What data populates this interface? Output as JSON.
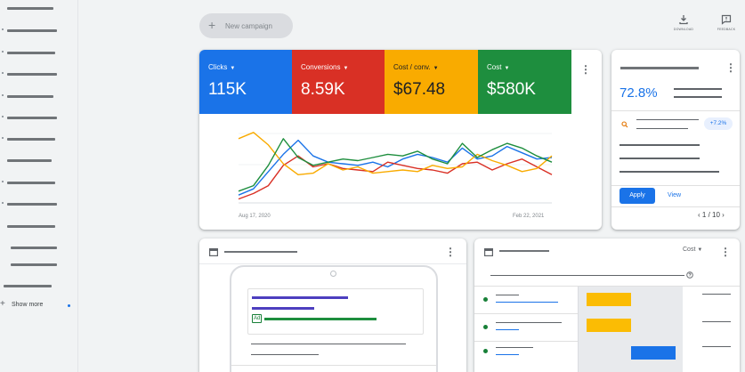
{
  "sidebar": {
    "show_more_label": "Show more"
  },
  "toolbar": {
    "new_campaign_label": "New campaign",
    "download_label": "DOWNLOAD",
    "feedback_label": "FEEDBACK"
  },
  "colors": {
    "clicks": "#1a73e8",
    "conversions": "#d93025",
    "cost_per_conv": "#f9ab00",
    "cost": "#1e8e3e"
  },
  "metrics": [
    {
      "label": "Clicks",
      "value": "115K",
      "color": "#1a73e8"
    },
    {
      "label": "Conversions",
      "value": "8.59K",
      "color": "#d93025"
    },
    {
      "label": "Cost / conv.",
      "value": "$67.48",
      "color": "#f9ab00"
    },
    {
      "label": "Cost",
      "value": "$580K",
      "color": "#1e8e3e"
    }
  ],
  "chart_data": {
    "type": "line",
    "title": "",
    "x_start_label": "Aug 17, 2020",
    "x_end_label": "Feb 22, 2021",
    "ylim": [
      0,
      100
    ],
    "series": [
      {
        "name": "Clicks",
        "color": "#1a73e8",
        "values": [
          10,
          18,
          40,
          62,
          80,
          60,
          52,
          50,
          48,
          52,
          46,
          56,
          62,
          58,
          52,
          70,
          56,
          60,
          72,
          64,
          56,
          58
        ]
      },
      {
        "name": "Conversions",
        "color": "#d93025",
        "values": [
          5,
          12,
          22,
          48,
          60,
          46,
          50,
          44,
          42,
          40,
          52,
          48,
          44,
          42,
          38,
          50,
          52,
          42,
          50,
          56,
          46,
          36
        ]
      },
      {
        "name": "Cost / conv.",
        "color": "#f9ab00",
        "values": [
          82,
          90,
          74,
          50,
          36,
          38,
          50,
          42,
          46,
          38,
          40,
          42,
          40,
          48,
          44,
          46,
          62,
          54,
          48,
          40,
          44,
          60
        ]
      },
      {
        "name": "Cost",
        "color": "#1e8e3e",
        "values": [
          15,
          22,
          48,
          82,
          58,
          48,
          52,
          56,
          54,
          58,
          62,
          60,
          66,
          56,
          50,
          76,
          58,
          68,
          76,
          70,
          60,
          52
        ]
      }
    ]
  },
  "recommendation": {
    "value": "72.8%",
    "chip": "+7.2%",
    "apply_label": "Apply",
    "view_label": "View",
    "pager": "1 / 10"
  },
  "bottom_right": {
    "cost_select": "Cost"
  }
}
